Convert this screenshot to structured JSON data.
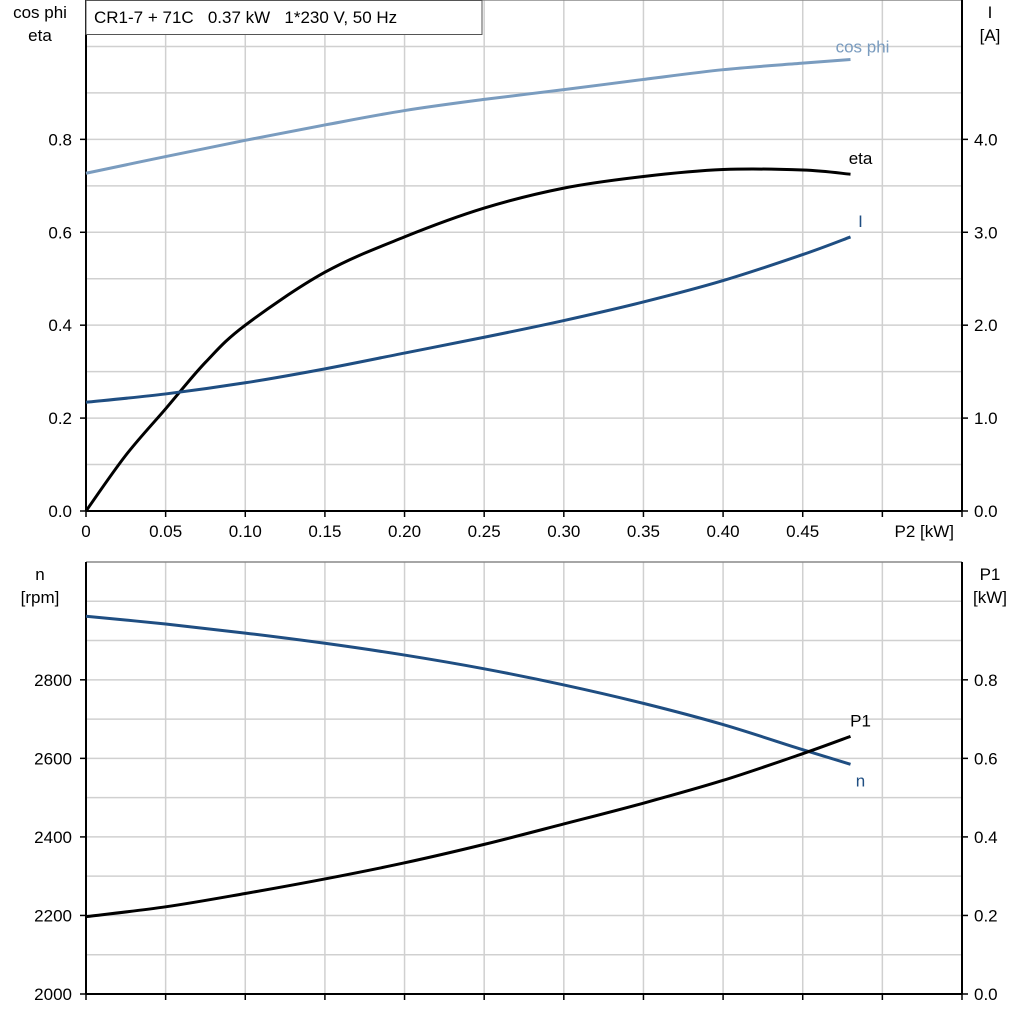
{
  "chart_data": [
    {
      "type": "line",
      "title": "CR1-7 + 71C   0.37 kW   1*230 V, 50 Hz",
      "xlabel": "P2 [kW]",
      "ylabel_left": [
        "cos phi",
        "eta"
      ],
      "ylabel_right": [
        "I",
        "[A]"
      ],
      "xlim": [
        0,
        0.55
      ],
      "ylim_left": [
        0,
        1.1
      ],
      "ylim_right": [
        0,
        5.5
      ],
      "grid": true,
      "x_ticks": [
        "0",
        "0.05",
        "0.10",
        "0.15",
        "0.20",
        "0.25",
        "0.30",
        "0.35",
        "0.40",
        "0.45"
      ],
      "y_ticks_left": [
        "0.0",
        "0.2",
        "0.4",
        "0.6",
        "0.8"
      ],
      "y_ticks_right": [
        "0.0",
        "1.0",
        "2.0",
        "3.0",
        "4.0"
      ],
      "series": [
        {
          "name": "cos phi",
          "axis": "left",
          "color": "#7a9cbf",
          "x": [
            0,
            0.05,
            0.1,
            0.15,
            0.2,
            0.25,
            0.3,
            0.35,
            0.4,
            0.45,
            0.48
          ],
          "y": [
            0.727,
            0.763,
            0.798,
            0.831,
            0.862,
            0.886,
            0.907,
            0.929,
            0.95,
            0.964,
            0.972
          ]
        },
        {
          "name": "eta",
          "axis": "left",
          "color": "#000000",
          "x": [
            0,
            0.025,
            0.05,
            0.075,
            0.1,
            0.15,
            0.2,
            0.25,
            0.3,
            0.35,
            0.4,
            0.45,
            0.48
          ],
          "y": [
            0,
            0.12,
            0.22,
            0.32,
            0.4,
            0.514,
            0.59,
            0.652,
            0.695,
            0.72,
            0.735,
            0.734,
            0.725
          ]
        },
        {
          "name": "I",
          "axis": "right",
          "color": "#1f4e82",
          "x": [
            0,
            0.05,
            0.1,
            0.15,
            0.2,
            0.25,
            0.3,
            0.35,
            0.4,
            0.45,
            0.48
          ],
          "y": [
            1.17,
            1.26,
            1.38,
            1.53,
            1.7,
            1.87,
            2.05,
            2.25,
            2.48,
            2.76,
            2.95
          ]
        }
      ]
    },
    {
      "type": "line",
      "xlabel": "",
      "ylabel_left": [
        "n",
        "[rpm]"
      ],
      "ylabel_right": [
        "P1",
        "[kW]"
      ],
      "xlim": [
        0,
        0.55
      ],
      "ylim_left": [
        2000,
        3100
      ],
      "ylim_right": [
        0,
        1.1
      ],
      "grid": true,
      "y_ticks_left": [
        "2000",
        "2200",
        "2400",
        "2600",
        "2800"
      ],
      "y_ticks_right": [
        "0.0",
        "0.2",
        "0.4",
        "0.6",
        "0.8"
      ],
      "series": [
        {
          "name": "n",
          "axis": "left",
          "color": "#1f4e82",
          "x": [
            0,
            0.05,
            0.1,
            0.15,
            0.2,
            0.25,
            0.3,
            0.35,
            0.4,
            0.45,
            0.48
          ],
          "y": [
            2962,
            2942,
            2919,
            2893,
            2863,
            2828,
            2787,
            2740,
            2686,
            2622,
            2585
          ]
        },
        {
          "name": "P1",
          "axis": "right",
          "color": "#000000",
          "x": [
            0,
            0.05,
            0.1,
            0.15,
            0.2,
            0.25,
            0.3,
            0.35,
            0.4,
            0.45,
            0.48
          ],
          "y": [
            0.197,
            0.222,
            0.256,
            0.293,
            0.334,
            0.381,
            0.433,
            0.486,
            0.544,
            0.612,
            0.656
          ]
        }
      ]
    }
  ]
}
